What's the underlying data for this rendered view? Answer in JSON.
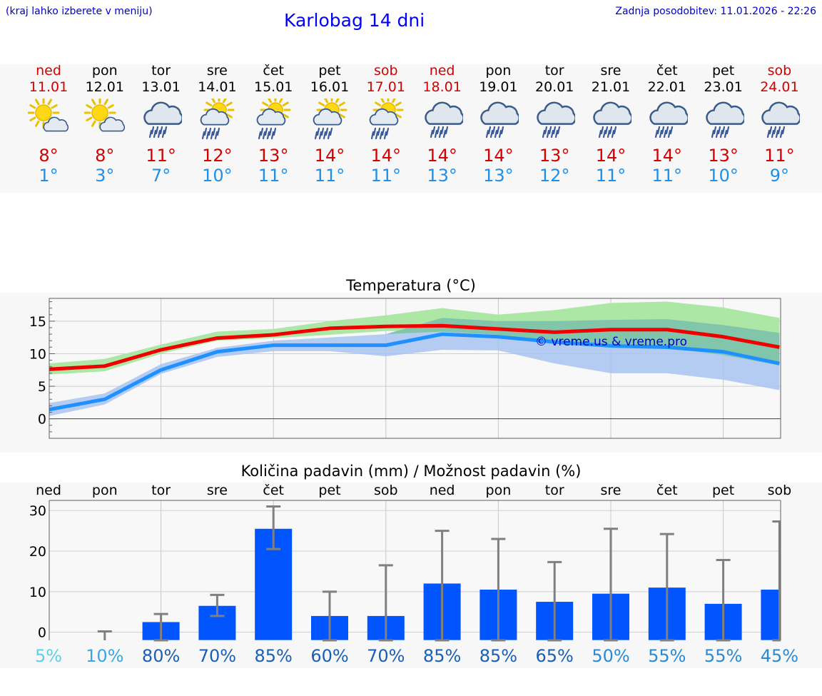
{
  "header": {
    "hint": "(kraj lahko izberete v meniju)",
    "title": "Karlobag 14 dni",
    "updated": "Zadnja posodobitev: 11.01.2026 - 22:26"
  },
  "days": [
    {
      "name": "ned",
      "date": "11.01",
      "weekend": true,
      "icon": "sun-cloud-icon",
      "max": "8°",
      "min": "1°"
    },
    {
      "name": "pon",
      "date": "12.01",
      "weekend": false,
      "icon": "sun-cloud-icon",
      "max": "8°",
      "min": "3°"
    },
    {
      "name": "tor",
      "date": "13.01",
      "weekend": false,
      "icon": "rain-cloud-icon",
      "max": "11°",
      "min": "7°"
    },
    {
      "name": "sre",
      "date": "14.01",
      "weekend": false,
      "icon": "sun-rain-cloud-icon",
      "max": "12°",
      "min": "10°"
    },
    {
      "name": "čet",
      "date": "15.01",
      "weekend": false,
      "icon": "sun-rain-cloud-icon",
      "max": "13°",
      "min": "11°"
    },
    {
      "name": "pet",
      "date": "16.01",
      "weekend": false,
      "icon": "sun-rain-cloud-icon",
      "max": "14°",
      "min": "11°"
    },
    {
      "name": "sob",
      "date": "17.01",
      "weekend": true,
      "icon": "sun-rain-cloud-icon",
      "max": "14°",
      "min": "11°"
    },
    {
      "name": "ned",
      "date": "18.01",
      "weekend": true,
      "icon": "rain-cloud-icon",
      "max": "14°",
      "min": "13°"
    },
    {
      "name": "pon",
      "date": "19.01",
      "weekend": false,
      "icon": "rain-cloud-icon",
      "max": "14°",
      "min": "13°"
    },
    {
      "name": "tor",
      "date": "20.01",
      "weekend": false,
      "icon": "rain-cloud-icon",
      "max": "13°",
      "min": "12°"
    },
    {
      "name": "sre",
      "date": "21.01",
      "weekend": false,
      "icon": "rain-cloud-icon",
      "max": "14°",
      "min": "11°"
    },
    {
      "name": "čet",
      "date": "22.01",
      "weekend": false,
      "icon": "rain-cloud-icon",
      "max": "14°",
      "min": "11°"
    },
    {
      "name": "pet",
      "date": "23.01",
      "weekend": false,
      "icon": "rain-cloud-icon",
      "max": "13°",
      "min": "10°"
    },
    {
      "name": "sob",
      "date": "24.01",
      "weekend": true,
      "icon": "rain-cloud-icon",
      "max": "11°",
      "min": "9°"
    }
  ],
  "colors": {
    "weekend": "#d40000",
    "weekday": "#000000",
    "tmax_line": "#ee0000",
    "tmin_line": "#1e90ff",
    "tmax_band": "#a8e6a0",
    "tmin_band": "#a8c4f0",
    "overlap_band": "#7cc4a4",
    "bar": "#0055ff",
    "errorbar": "#808080",
    "watermark": "#0000cc"
  },
  "chart_data": [
    {
      "type": "line",
      "title": "Temperatura (°C)",
      "ylim": [
        -3,
        18.5
      ],
      "yticks": [
        0,
        5,
        10,
        15
      ],
      "watermark": "© vreme.us & vreme.pro",
      "series": [
        {
          "name": "Tmax",
          "values": [
            7.6,
            8.1,
            10.6,
            12.4,
            12.9,
            13.9,
            14.2,
            14.3,
            13.8,
            13.3,
            13.7,
            13.7,
            12.6,
            11.0
          ]
        },
        {
          "name": "Tmin",
          "values": [
            1.4,
            3.0,
            7.5,
            10.3,
            11.3,
            11.3,
            11.3,
            13.0,
            12.6,
            11.8,
            11.2,
            11.0,
            10.3,
            8.5
          ]
        }
      ],
      "tmax_band_lower": [
        6.8,
        7.3,
        10.0,
        12.0,
        12.4,
        12.9,
        13.5,
        13.4,
        12.9,
        12.0,
        10.9,
        10.9,
        9.8,
        8.2
      ],
      "tmax_band_upper": [
        8.5,
        9.2,
        11.4,
        13.4,
        13.8,
        15.0,
        15.9,
        17.0,
        16.0,
        16.7,
        17.8,
        18.0,
        17.1,
        15.5
      ],
      "tmin_band_lower": [
        0.4,
        2.2,
        6.9,
        9.5,
        10.4,
        10.4,
        9.6,
        10.6,
        10.5,
        8.5,
        7.0,
        7.0,
        6.0,
        4.4
      ],
      "tmin_band_upper": [
        2.4,
        3.9,
        8.4,
        10.9,
        12.0,
        12.5,
        13.0,
        15.5,
        15.0,
        15.0,
        15.2,
        15.3,
        14.4,
        13.2
      ]
    },
    {
      "type": "bar",
      "title": "Količina padavin (mm) / Možnost padavin (%)",
      "ylim": [
        -2,
        32.5
      ],
      "yticks": [
        0,
        10,
        20,
        30
      ],
      "categories": [
        "ned",
        "pon",
        "tor",
        "sre",
        "čet",
        "pet",
        "sob",
        "ned",
        "pon",
        "tor",
        "sre",
        "čet",
        "pet",
        "sob"
      ],
      "values": [
        0,
        0,
        2.5,
        6.5,
        25.5,
        4.0,
        4.0,
        12.0,
        10.5,
        7.5,
        9.5,
        11.0,
        7.0,
        10.5
      ],
      "err_low": [
        0,
        0,
        0,
        4.0,
        20.5,
        0,
        0,
        0,
        0,
        0,
        0,
        0,
        0,
        0
      ],
      "err_high": [
        0,
        0.2,
        4.5,
        9.2,
        31.0,
        10.0,
        16.5,
        25.0,
        23.0,
        17.3,
        25.5,
        24.2,
        17.8,
        27.3
      ],
      "probabilities": [
        "5%",
        "10%",
        "80%",
        "70%",
        "85%",
        "60%",
        "70%",
        "85%",
        "85%",
        "65%",
        "50%",
        "55%",
        "55%",
        "45%"
      ],
      "probability_values": [
        5,
        10,
        80,
        70,
        85,
        60,
        70,
        85,
        85,
        65,
        50,
        55,
        55,
        45
      ]
    }
  ]
}
